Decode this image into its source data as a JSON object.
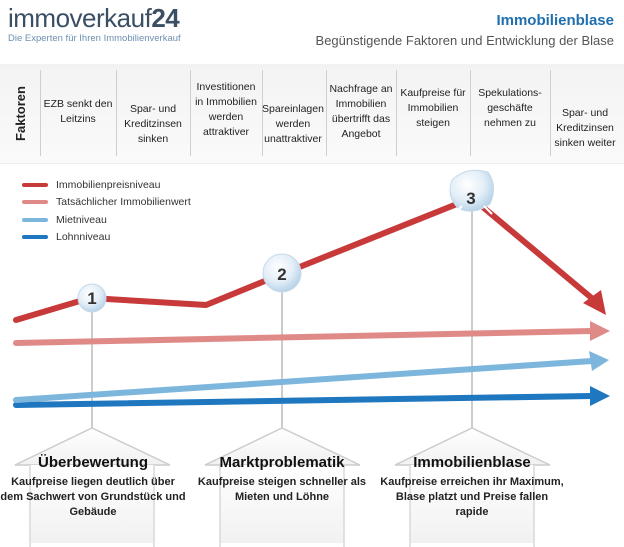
{
  "header": {
    "logo_word": "immoverkauf",
    "logo_num": "24",
    "logo_tagline": "Die Experten für Ihren Immobilienverkauf",
    "title": "Immobilienblase",
    "subtitle": "Begünstigende Faktoren und Entwicklung der Blase"
  },
  "factors": {
    "label": "Faktoren",
    "items": [
      "EZB senkt den Leitzins",
      "Spar- und Kreditzinsen sinken",
      "Investitionen in Immobilien werden attraktiver",
      "Spareinlagen werden unattraktiver",
      "Nachfrage an Immobilien übertrifft das Angebot",
      "Kaufpreise für Immobilien steigen",
      "Spekulations-geschäfte nehmen zu",
      "Spar- und Kreditzinsen sinken weiter"
    ]
  },
  "legend": [
    {
      "label": "Immobilienpreisniveau",
      "color": "#c83a3a"
    },
    {
      "label": "Tatsächlicher Immobilienwert",
      "color": "#e08a88"
    },
    {
      "label": "Mietniveau",
      "color": "#7db6dc"
    },
    {
      "label": "Lohnniveau",
      "color": "#1f77c0"
    }
  ],
  "markers": [
    "1",
    "2",
    "3"
  ],
  "stages": [
    {
      "title": "Überbewertung",
      "desc": "Kaufpreise liegen deutlich über dem Sachwert von Grundstück und Gebäude"
    },
    {
      "title": "Marktproblematik",
      "desc": "Kaufpreise steigen schneller als Mieten und Löhne"
    },
    {
      "title": "Immobilienblase",
      "desc": "Kaufpreise erreichen ihr Maximum, Blase platzt und Preise fallen rapide"
    }
  ]
}
